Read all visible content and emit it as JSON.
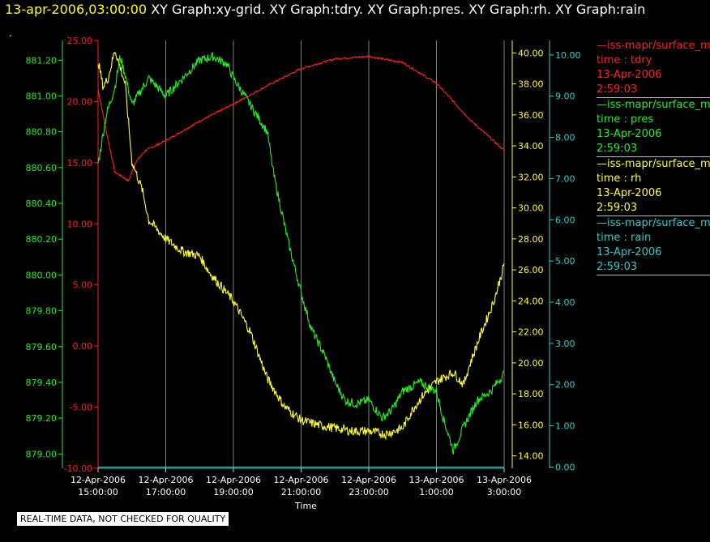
{
  "header": {
    "timestamp": "13-apr-2006,03:00:00",
    "titles": "XY Graph:xy-grid.  XY Graph:tdry.  XY Graph:pres.  XY Graph:rh.  XY Graph:rain"
  },
  "subheader": ".",
  "note": "REAL-TIME DATA, NOT CHECKED FOR QUALITY",
  "colors": {
    "tdry": "#ff2020",
    "pres": "#22ee22",
    "rh": "#ffff33",
    "rain": "#33cccc",
    "grid": "#cccccc"
  },
  "legend": [
    {
      "name": "—iss-mapr/surface_m",
      "field": "time : tdry",
      "date": "13-Apr-2006",
      "time": "2:59:03",
      "color": "#ff2020"
    },
    {
      "name": "—iss-mapr/surface_m",
      "field": "time : pres",
      "date": "13-Apr-2006",
      "time": "2:59:03",
      "color": "#22ee22"
    },
    {
      "name": "—iss-mapr/surface_m",
      "field": "time : rh",
      "date": "13-Apr-2006",
      "time": "2:59:03",
      "color": "#ffff33"
    },
    {
      "name": "—iss-mapr/surface_m",
      "field": "time : rain",
      "date": "13-Apr-2006",
      "time": "2:59:03",
      "color": "#33cccc"
    }
  ],
  "chart_data": {
    "type": "line",
    "xlabel": "Time",
    "x_ticks": [
      {
        "date": "12-Apr-2006",
        "time": "15:00:00"
      },
      {
        "date": "12-Apr-2006",
        "time": "17:00:00"
      },
      {
        "date": "12-Apr-2006",
        "time": "19:00:00"
      },
      {
        "date": "12-Apr-2006",
        "time": "21:00:00"
      },
      {
        "date": "12-Apr-2006",
        "time": "23:00:00"
      },
      {
        "date": "13-Apr-2006",
        "time": "1:00:00"
      },
      {
        "date": "13-Apr-2006",
        "time": "3:00:00"
      }
    ],
    "xlim_hours": [
      0,
      12
    ],
    "grid": true,
    "axes": [
      {
        "id": "tdry",
        "color": "#ff2020",
        "ylim": [
          -10,
          25
        ],
        "ticks": [
          "-10.00",
          "-5.00",
          "0.00",
          "5.00",
          "10.00",
          "15.00",
          "20.00",
          "25.00"
        ]
      },
      {
        "id": "pres",
        "color": "#22ee22",
        "ylim": [
          878.92,
          881.31
        ],
        "ticks": [
          "879.00",
          "879.20",
          "879.40",
          "879.60",
          "879.80",
          "880.00",
          "880.20",
          "880.40",
          "880.60",
          "880.80",
          "881.00",
          "881.20"
        ]
      },
      {
        "id": "rh",
        "color": "#ffff33",
        "ylim": [
          13.2,
          40.8
        ],
        "ticks": [
          "14.00",
          "16.00",
          "18.00",
          "20.00",
          "22.00",
          "24.00",
          "26.00",
          "28.00",
          "30.00",
          "32.00",
          "34.00",
          "36.00",
          "38.00",
          "40.00"
        ]
      },
      {
        "id": "rain",
        "color": "#33cccc",
        "ylim": [
          -0.03,
          10.35
        ],
        "ticks": [
          "0.00",
          "1.00",
          "2.00",
          "3.00",
          "4.00",
          "5.00",
          "6.00",
          "7.00",
          "8.00",
          "9.00",
          "10.00"
        ]
      }
    ],
    "series": [
      {
        "name": "tdry",
        "axis": "tdry",
        "color": "#ff2020",
        "noise": 0.08,
        "points": [
          [
            0,
            21.0
          ],
          [
            0.25,
            17.5
          ],
          [
            0.5,
            14.2
          ],
          [
            0.75,
            13.8
          ],
          [
            0.9,
            13.5
          ],
          [
            1.1,
            15.0
          ],
          [
            1.4,
            16.0
          ],
          [
            2,
            16.8
          ],
          [
            3,
            18.4
          ],
          [
            4,
            19.8
          ],
          [
            5,
            21.3
          ],
          [
            6,
            22.7
          ],
          [
            7,
            23.5
          ],
          [
            8,
            23.7
          ],
          [
            9,
            23.2
          ],
          [
            10,
            21.5
          ],
          [
            11,
            18.5
          ],
          [
            12,
            16.0
          ]
        ]
      },
      {
        "name": "pres",
        "axis": "pres",
        "color": "#22ee22",
        "noise": 0.025,
        "points": [
          [
            0,
            880.62
          ],
          [
            0.25,
            880.9
          ],
          [
            0.5,
            881.05
          ],
          [
            0.65,
            881.22
          ],
          [
            0.8,
            881.12
          ],
          [
            1,
            880.95
          ],
          [
            1.5,
            881.1
          ],
          [
            2,
            881.0
          ],
          [
            2.5,
            881.1
          ],
          [
            3,
            881.2
          ],
          [
            3.4,
            881.22
          ],
          [
            3.8,
            881.18
          ],
          [
            4,
            881.1
          ],
          [
            4.5,
            880.95
          ],
          [
            5,
            880.8
          ],
          [
            5.2,
            880.55
          ],
          [
            5.6,
            880.2
          ],
          [
            6,
            879.9
          ],
          [
            6.3,
            879.7
          ],
          [
            6.7,
            879.55
          ],
          [
            7,
            879.4
          ],
          [
            7.3,
            879.3
          ],
          [
            7.6,
            879.28
          ],
          [
            8,
            879.3
          ],
          [
            8.4,
            879.2
          ],
          [
            8.7,
            879.25
          ],
          [
            9,
            879.35
          ],
          [
            9.5,
            879.4
          ],
          [
            10,
            879.35
          ],
          [
            10.2,
            879.2
          ],
          [
            10.5,
            879.02
          ],
          [
            10.8,
            879.15
          ],
          [
            11.2,
            879.3
          ],
          [
            11.6,
            879.35
          ],
          [
            12,
            879.45
          ]
        ]
      },
      {
        "name": "rh",
        "axis": "rh",
        "color": "#ffff33",
        "noise": 0.3,
        "points": [
          [
            0,
            39.5
          ],
          [
            0.15,
            37.8
          ],
          [
            0.3,
            38.4
          ],
          [
            0.5,
            40.2
          ],
          [
            0.8,
            38.0
          ],
          [
            1,
            33.0
          ],
          [
            1.3,
            31.2
          ],
          [
            1.5,
            29.2
          ],
          [
            2,
            28.0
          ],
          [
            2.5,
            27.2
          ],
          [
            3,
            26.9
          ],
          [
            3.3,
            25.8
          ],
          [
            4,
            24.0
          ],
          [
            4.5,
            22.0
          ],
          [
            5,
            19.0
          ],
          [
            5.5,
            17.2
          ],
          [
            6,
            16.3
          ],
          [
            6.5,
            16.0
          ],
          [
            7,
            15.8
          ],
          [
            7.5,
            15.6
          ],
          [
            8,
            15.6
          ],
          [
            8.5,
            15.4
          ],
          [
            9,
            15.8
          ],
          [
            9.3,
            17.0
          ],
          [
            9.6,
            17.9
          ],
          [
            10,
            18.8
          ],
          [
            10.5,
            19.4
          ],
          [
            10.8,
            18.6
          ],
          [
            11,
            20.0
          ],
          [
            11.3,
            21.8
          ],
          [
            11.7,
            24.0
          ],
          [
            12,
            26.3
          ]
        ]
      },
      {
        "name": "rain",
        "axis": "rain",
        "color": "#33cccc",
        "noise": 0,
        "points": [
          [
            0,
            0.0
          ],
          [
            12,
            0.0
          ]
        ]
      }
    ]
  }
}
